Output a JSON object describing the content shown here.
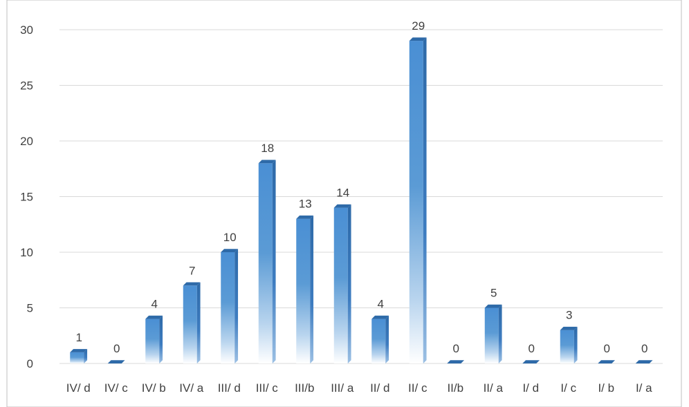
{
  "chart_data": {
    "type": "bar",
    "title": "",
    "xlabel": "",
    "ylabel": "",
    "categories": [
      "IV/ d",
      "IV/ c",
      "IV/ b",
      "IV/ a",
      "III/ d",
      "III/ c",
      "III/b",
      "III/ a",
      "II/ d",
      "II/ c",
      "II/b",
      "II/ a",
      "I/ d",
      "I/ c",
      "I/ b",
      "I/ a"
    ],
    "values": [
      1,
      0,
      4,
      7,
      10,
      18,
      13,
      14,
      4,
      29,
      0,
      5,
      0,
      3,
      0,
      0
    ],
    "data_labels": [
      "1",
      "0",
      "4",
      "7",
      "10",
      "18",
      "13",
      "14",
      "4",
      "29",
      "0",
      "5",
      "0",
      "3",
      "0",
      "0"
    ],
    "ylim": [
      0,
      30
    ],
    "yticks": [
      0,
      5,
      10,
      15,
      20,
      25,
      30
    ],
    "ytick_labels": [
      "0",
      "5",
      "10",
      "15",
      "20",
      "25",
      "30"
    ],
    "grid": true,
    "legend": "none",
    "style": "3d-column-gradient",
    "colors": {
      "bar_top": "#5b9bd5",
      "bar_front": "#4a8fd4",
      "bar_side": "#2e6aa8",
      "bar_fade": "#ffffff",
      "grid": "#d9d9d9",
      "text": "#404040",
      "frame": "#bfbfbf"
    }
  }
}
